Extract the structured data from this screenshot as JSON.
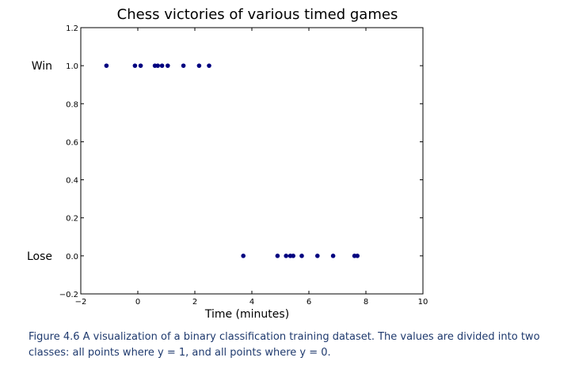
{
  "chart_data": {
    "type": "scatter",
    "title": "Chess victories of various timed games",
    "xlabel": "Time (minutes)",
    "ylabel": "",
    "xlim": [
      -2,
      10
    ],
    "ylim": [
      -0.2,
      1.2
    ],
    "xticks": [
      "−2",
      "0",
      "2",
      "4",
      "6",
      "8",
      "10"
    ],
    "yticks": [
      "−0.2",
      "0.0",
      "0.2",
      "0.4",
      "0.6",
      "0.8",
      "1.0",
      "1.2"
    ],
    "ycategory_labels": [
      {
        "y": 1.0,
        "label": "Win"
      },
      {
        "y": 0.0,
        "label": "Lose"
      }
    ],
    "point_color": "#000080",
    "series": [
      {
        "points": [
          {
            "x": -1.1,
            "y": 1.0
          },
          {
            "x": -0.1,
            "y": 1.0
          },
          {
            "x": 0.1,
            "y": 1.0
          },
          {
            "x": 0.6,
            "y": 1.0
          },
          {
            "x": 0.7,
            "y": 1.0
          },
          {
            "x": 0.85,
            "y": 1.0
          },
          {
            "x": 1.05,
            "y": 1.0
          },
          {
            "x": 1.6,
            "y": 1.0
          },
          {
            "x": 2.15,
            "y": 1.0
          },
          {
            "x": 2.5,
            "y": 1.0
          },
          {
            "x": 3.7,
            "y": 0.0
          },
          {
            "x": 4.9,
            "y": 0.0
          },
          {
            "x": 5.2,
            "y": 0.0
          },
          {
            "x": 5.35,
            "y": 0.0
          },
          {
            "x": 5.45,
            "y": 0.0
          },
          {
            "x": 5.75,
            "y": 0.0
          },
          {
            "x": 6.3,
            "y": 0.0
          },
          {
            "x": 6.85,
            "y": 0.0
          },
          {
            "x": 7.6,
            "y": 0.0
          },
          {
            "x": 7.7,
            "y": 0.0
          }
        ]
      }
    ]
  },
  "caption": {
    "text": "Figure 4.6 A visualization of a binary classification training dataset. The values are divided into two classes: all points where y = 1, and all points where y = 0."
  }
}
